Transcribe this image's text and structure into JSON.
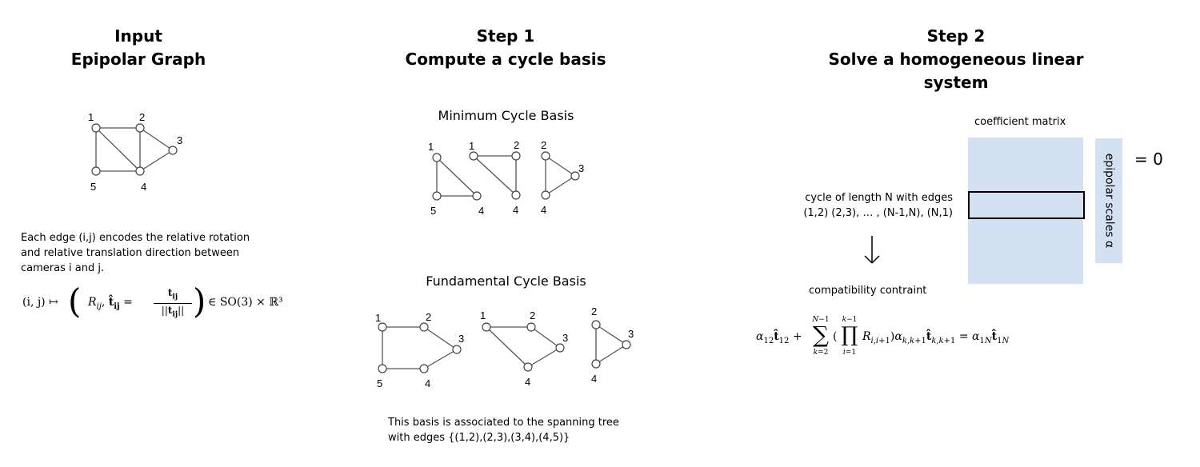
{
  "input": {
    "title_line1": "Input",
    "title_line2": "Epipolar Graph",
    "description": "Each edge (i,j) encodes the relative rotation and relative translation direction between cameras i and j.",
    "formula_lhs": "(i, j) ↦",
    "formula_so3": "∈ SO(3) × ℝ³"
  },
  "step1": {
    "title_line1": "Step 1",
    "title_line2": "Compute a cycle basis",
    "minimum_label": "Minimum Cycle Basis",
    "fundamental_label": "Fundamental Cycle Basis",
    "note_line1": "This basis is associated to the spanning tree",
    "note_line2": "with edges {(1,2),(2,3),(3,4),(4,5)}"
  },
  "step2": {
    "title_line1": "Step 2",
    "title_line2": "Solve a homogeneous linear system",
    "coefficient_label": "coefficient matrix",
    "scales_label": "epipolar scales α",
    "equals_zero": "= 0",
    "cycle_line1": "cycle of length N with edges",
    "cycle_line2": "(1,2) (2,3), … , (N-1,N), (N,1)",
    "constraint_label": "compatibility contraint"
  },
  "node_labels": {
    "n1": "1",
    "n2": "2",
    "n3": "3",
    "n4": "4",
    "n5": "5"
  },
  "colors": {
    "panel": "#d4e1f3",
    "edge": "#555555"
  }
}
